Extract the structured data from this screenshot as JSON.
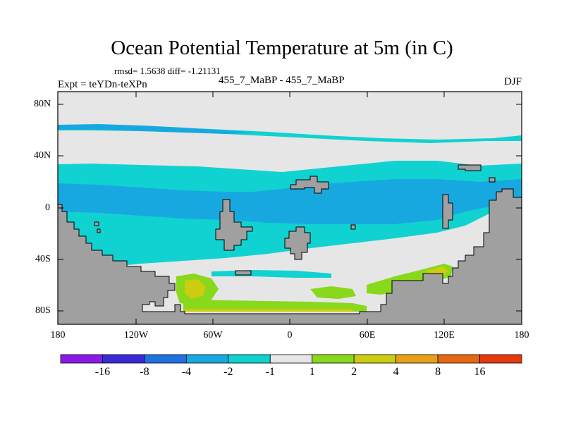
{
  "title": "Ocean Potential Temperature at 5m (in C)",
  "stats": "rmsd= 1.5638  diff= -1.21131",
  "experiment": "Expt = teYDn-teXPn",
  "comparison": "455_7_MaBP - 455_7_MaBP",
  "season": "DJF",
  "axes": {
    "y_ticks": [
      "80N",
      "40N",
      "0",
      "40S",
      "80S"
    ],
    "x_ticks": [
      "180",
      "120W",
      "60W",
      "0",
      "60E",
      "120E",
      "180"
    ]
  },
  "colorbar": {
    "colors": [
      "#8c1ae6",
      "#3a2ad8",
      "#1f72e0",
      "#18a8e0",
      "#10d2d0",
      "#e6e6e6",
      "#88d81c",
      "#cccc10",
      "#e8a018",
      "#e86812",
      "#e83810"
    ],
    "labels": [
      "-16",
      "-8",
      "-4",
      "-2",
      "-1",
      "1",
      "2",
      "4",
      "8",
      "16"
    ]
  },
  "colors": {
    "land": "#a0a0a0",
    "neutral": "#e6e6e6",
    "cool1": "#10d2d0",
    "cool2": "#18a8e0",
    "cool3": "#1f72e0",
    "warm1": "#88d81c",
    "warm2": "#cccc10",
    "warm3": "#e8a018"
  }
}
